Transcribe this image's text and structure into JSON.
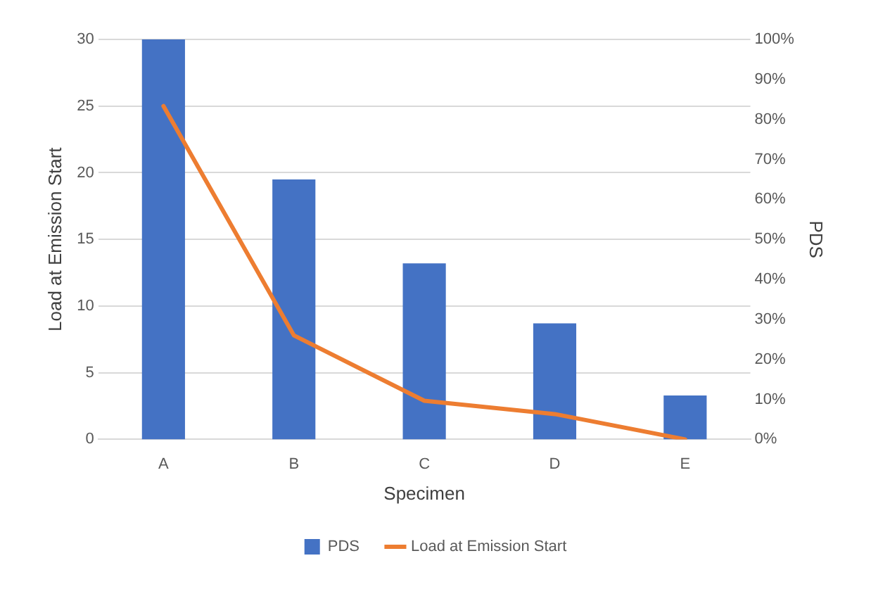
{
  "chart_data": {
    "type": "bar",
    "xlabel": "Specimen",
    "ylabel": "Load at Emission Start",
    "y2label": "PDS",
    "categories": [
      "A",
      "B",
      "C",
      "D",
      "E"
    ],
    "series": [
      {
        "name": "PDS",
        "axis": "y2",
        "color": "#4472c4",
        "values": [
          100,
          65,
          44,
          29,
          11
        ]
      },
      {
        "name": "Load at Emission Start",
        "type": "line",
        "axis": "y",
        "color": "#ed7d31",
        "marker": "none",
        "values": [
          25,
          7.8,
          2.9,
          1.9,
          0
        ]
      }
    ],
    "ylim": [
      0,
      30
    ],
    "yticks": [
      0,
      5,
      10,
      15,
      20,
      25,
      30
    ],
    "y2lim": [
      0,
      100
    ],
    "y2ticks": [
      {
        "value": 0,
        "label": "0%"
      },
      {
        "value": 10,
        "label": "10%"
      },
      {
        "value": 20,
        "label": "20%"
      },
      {
        "value": 30,
        "label": "30%"
      },
      {
        "value": 40,
        "label": "40%"
      },
      {
        "value": 50,
        "label": "50%"
      },
      {
        "value": 60,
        "label": "60%"
      },
      {
        "value": 70,
        "label": "70%"
      },
      {
        "value": 80,
        "label": "80%"
      },
      {
        "value": 90,
        "label": "90%"
      },
      {
        "value": 100,
        "label": "100%"
      }
    ],
    "grid": "y",
    "legend": "bottom"
  }
}
